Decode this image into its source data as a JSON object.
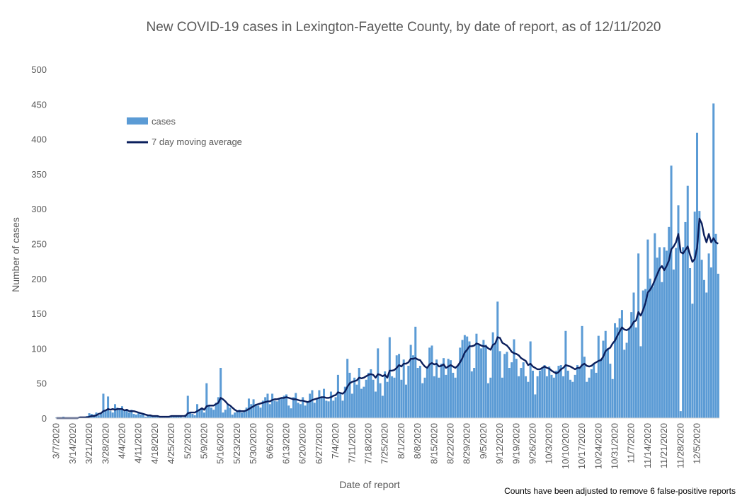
{
  "chart_data": {
    "type": "bar",
    "title": "New COVID-19 cases in Lexington-Fayette County, by date of report, as of 12/11/2020",
    "xlabel": "Date of report",
    "ylabel": "Number of cases",
    "ylim": [
      0,
      500
    ],
    "yticks": [
      "0",
      "50",
      "100",
      "150",
      "200",
      "250",
      "300",
      "350",
      "400",
      "450",
      "500"
    ],
    "xticks": [
      "3/7/2020",
      "3/14/2020",
      "3/21/2020",
      "3/28/2020",
      "4/4/2020",
      "4/11/2020",
      "4/18/2020",
      "4/25/2020",
      "5/2/2020",
      "5/9/2020",
      "5/16/2020",
      "5/23/2020",
      "5/30/2020",
      "6/6/2020",
      "6/13/2020",
      "6/20/2020",
      "6/27/2020",
      "7/4/2020",
      "7/11/2020",
      "7/18/2020",
      "7/25/2020",
      "8/1/2020",
      "8/8/2020",
      "8/15/2020",
      "8/22/2020",
      "8/29/2020",
      "9/5/2020",
      "9/12/2020",
      "9/19/2020",
      "9/26/2020",
      "10/3/2020",
      "10/10/2020",
      "10/17/2020",
      "10/24/2020",
      "10/31/2020",
      "11/7/2020",
      "11/14/2020",
      "11/21/2020",
      "11/28/2020",
      "12/5/2020"
    ],
    "legend": {
      "position": "top-left",
      "entries": [
        "cases",
        "7 day moving average"
      ]
    },
    "grid": false,
    "colors": {
      "cases": "#5b9bd5",
      "moving_average": "#0b1f5c"
    },
    "note": "Counts have been adjusted to remove 6 false-positive reports",
    "weekly_series": {
      "week_start": [
        "3/7/2020",
        "3/14/2020",
        "3/21/2020",
        "3/28/2020",
        "4/4/2020",
        "4/11/2020",
        "4/18/2020",
        "4/25/2020",
        "5/2/2020",
        "5/9/2020",
        "5/16/2020",
        "5/23/2020",
        "5/30/2020",
        "6/6/2020",
        "6/13/2020",
        "6/20/2020",
        "6/27/2020",
        "7/4/2020",
        "7/11/2020",
        "7/18/2020",
        "7/25/2020",
        "8/1/2020",
        "8/8/2020",
        "8/15/2020",
        "8/22/2020",
        "8/29/2020",
        "9/5/2020",
        "9/12/2020",
        "9/19/2020",
        "9/26/2020",
        "10/3/2020",
        "10/10/2020",
        "10/17/2020",
        "10/24/2020",
        "10/31/2020",
        "11/7/2020",
        "11/14/2020",
        "11/21/2020",
        "11/28/2020",
        "12/5/2020"
      ],
      "cases": [
        [
          1,
          0,
          0,
          2,
          0,
          1,
          0
        ],
        [
          0,
          1,
          0,
          2,
          1,
          2,
          3
        ],
        [
          7,
          6,
          5,
          8,
          4,
          6,
          35
        ],
        [
          12,
          31,
          10,
          8,
          20,
          15,
          12
        ],
        [
          17,
          10,
          13,
          8,
          12,
          6,
          5
        ],
        [
          8,
          5,
          6,
          2,
          4,
          3,
          2
        ],
        [
          3,
          4,
          1,
          2,
          2,
          3,
          1
        ],
        [
          3,
          2,
          4,
          3,
          2,
          1,
          5
        ],
        [
          32,
          8,
          6,
          4,
          20,
          12,
          15
        ],
        [
          8,
          50,
          18,
          15,
          12,
          22,
          30
        ],
        [
          72,
          8,
          12,
          20,
          15,
          5,
          8
        ],
        [
          10,
          12,
          8,
          10,
          15,
          28,
          20
        ],
        [
          27,
          20,
          18,
          15,
          25,
          30,
          35
        ],
        [
          20,
          35,
          25,
          24,
          28,
          30,
          32
        ],
        [
          34,
          18,
          14,
          30,
          36,
          22,
          20
        ],
        [
          30,
          18,
          24,
          35,
          40,
          22,
          28
        ],
        [
          40,
          30,
          42,
          25,
          24,
          38,
          25
        ],
        [
          30,
          62,
          35,
          25,
          45,
          85,
          65
        ],
        [
          35,
          58,
          48,
          72,
          42,
          45,
          55
        ],
        [
          65,
          70,
          55,
          38,
          100,
          50,
          32
        ],
        [
          67,
          52,
          116,
          60,
          58,
          90,
          92
        ],
        [
          55,
          84,
          48,
          75,
          105,
          90,
          131
        ],
        [
          72,
          75,
          50,
          58,
          72,
          101,
          104
        ],
        [
          60,
          84,
          58,
          78,
          86,
          62,
          85
        ],
        [
          83,
          65,
          58,
          75,
          101,
          112,
          119
        ],
        [
          117,
          110,
          67,
          72,
          121,
          105,
          100
        ],
        [
          112,
          105,
          50,
          58,
          123,
          106,
          167
        ],
        [
          96,
          58,
          92,
          95,
          72,
          80,
          113
        ],
        [
          85,
          60,
          72,
          80,
          60,
          52,
          110
        ],
        [
          68,
          34,
          60,
          68,
          72,
          76,
          60
        ],
        [
          74,
          62,
          58,
          68,
          75,
          76,
          60
        ],
        [
          125,
          68,
          55,
          52,
          62,
          76,
          72
        ],
        [
          132,
          88,
          52,
          58,
          70,
          78,
          65
        ],
        [
          118,
          85,
          111,
          125,
          100,
          78,
          56
        ],
        [
          136,
          130,
          143,
          155,
          98,
          108,
          128
        ],
        [
          152,
          180,
          130,
          236,
          103,
          183,
          185
        ],
        [
          256,
          200,
          188,
          265,
          230,
          245,
          195
        ],
        [
          245,
          240,
          274,
          362,
          213,
          244,
          305
        ],
        [
          10,
          245,
          281,
          333,
          215,
          164,
          296
        ],
        [
          409,
          297,
          227,
          198,
          180,
          236,
          216
        ],
        [
          451,
          264,
          207
        ]
      ],
      "moving_average": [
        [
          0,
          0,
          0,
          0,
          0,
          0,
          0
        ],
        [
          0,
          0,
          0,
          1,
          1,
          1,
          1
        ],
        [
          2,
          3,
          3,
          4,
          6,
          7,
          10
        ],
        [
          11,
          13,
          12,
          13,
          12,
          13,
          13
        ],
        [
          13,
          11,
          12,
          10,
          10,
          10,
          9
        ],
        [
          8,
          7,
          6,
          5,
          4,
          4,
          3
        ],
        [
          3,
          3,
          2,
          2,
          2,
          2,
          2
        ],
        [
          3,
          3,
          3,
          3,
          3,
          3,
          3
        ],
        [
          7,
          8,
          8,
          8,
          10,
          12,
          14
        ],
        [
          12,
          17,
          18,
          18,
          18,
          20,
          22
        ],
        [
          29,
          27,
          24,
          20,
          18,
          15,
          12
        ],
        [
          10,
          10,
          10,
          10,
          11,
          13,
          15
        ],
        [
          17,
          19,
          20,
          21,
          22,
          23,
          24
        ],
        [
          24,
          26,
          27,
          27,
          28,
          29,
          29
        ],
        [
          30,
          29,
          28,
          27,
          27,
          26,
          25
        ],
        [
          25,
          24,
          23,
          24,
          26,
          27,
          28
        ],
        [
          29,
          30,
          30,
          29,
          29,
          30,
          32
        ],
        [
          33,
          37,
          36,
          35,
          38,
          45,
          50
        ],
        [
          52,
          53,
          54,
          58,
          57,
          58,
          60
        ],
        [
          62,
          63,
          62,
          58,
          63,
          62,
          60
        ],
        [
          62,
          58,
          68,
          68,
          69,
          72,
          76
        ],
        [
          74,
          78,
          78,
          80,
          85,
          85,
          86
        ],
        [
          84,
          83,
          78,
          74,
          72,
          77,
          79
        ],
        [
          77,
          78,
          74,
          75,
          77,
          72,
          74
        ],
        [
          76,
          74,
          72,
          75,
          80,
          86,
          94
        ],
        [
          98,
          103,
          103,
          104,
          107,
          106,
          104
        ],
        [
          103,
          103,
          100,
          98,
          105,
          107,
          116
        ],
        [
          115,
          108,
          106,
          104,
          100,
          95,
          93
        ],
        [
          92,
          90,
          86,
          84,
          82,
          76,
          78
        ],
        [
          74,
          72,
          70,
          70,
          72,
          74,
          72
        ],
        [
          71,
          68,
          66,
          64,
          66,
          70,
          72
        ],
        [
          76,
          75,
          74,
          72,
          70,
          72,
          72
        ],
        [
          76,
          78,
          75,
          74,
          75,
          78,
          80
        ],
        [
          82,
          83,
          88,
          96,
          99,
          101,
          107
        ],
        [
          111,
          118,
          124,
          130,
          127,
          126,
          128
        ],
        [
          132,
          138,
          140,
          152,
          147,
          155,
          165
        ],
        [
          180,
          184,
          190,
          198,
          206,
          214,
          218
        ],
        [
          212,
          218,
          226,
          242,
          246,
          252,
          264
        ],
        [
          238,
          236,
          241,
          246,
          234,
          224,
          228
        ],
        [
          244,
          286,
          279,
          262,
          252,
          264,
          252
        ],
        [
          258,
          252,
          250
        ]
      ]
    }
  }
}
